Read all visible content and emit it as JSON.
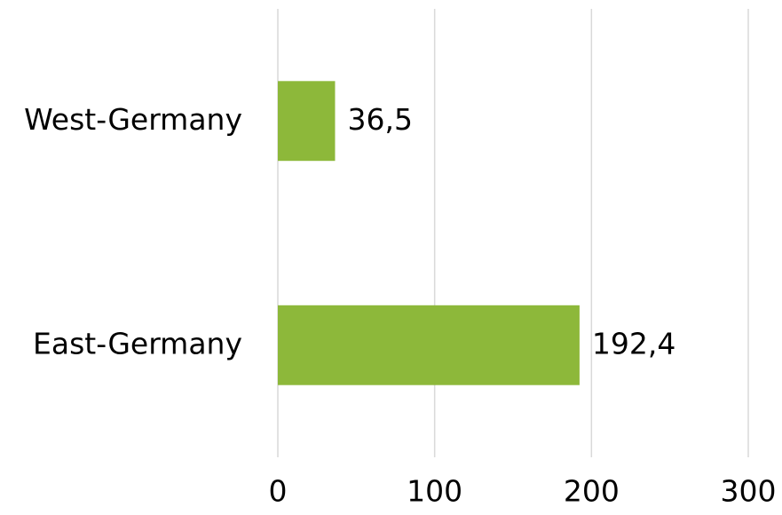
{
  "chart_data": {
    "type": "bar",
    "orientation": "horizontal",
    "categories": [
      "West-Germany",
      "East-Germany"
    ],
    "values": [
      36.5,
      192.4
    ],
    "value_labels": [
      "36,5",
      "192,4"
    ],
    "color": "#8db83a",
    "xlim": [
      0,
      300
    ],
    "xticks": [
      0,
      100,
      200,
      300
    ],
    "grid": true
  }
}
